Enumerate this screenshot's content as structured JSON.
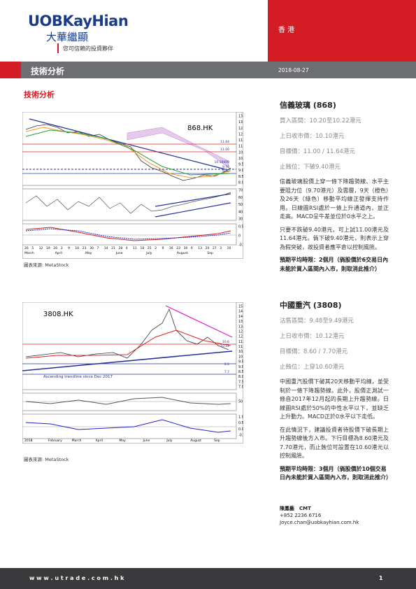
{
  "header": {
    "logo": "UOBKayHian",
    "logo_chinese": "大華繼顯",
    "tagline": "您可信賴的投資夥伴",
    "region": "香 港",
    "section": "技術分析",
    "date": "2018-08-27"
  },
  "page_heading": "技術分析",
  "stocks": [
    {
      "title": "信義玻璃 (868)",
      "entry": "買入區間：10.20至10.22港元",
      "close": "上日收市價：10.10港元",
      "target": "目標價：11.00 / 11.64港元",
      "stop": "止蝕位：下破9.40港元",
      "paragraphs": [
        "信義玻璃股價上穿一條下降趨勢線、水平主要阻力位（9.70港元）及雲層，9天（橙色）及26天（綠色）移動平均線正發揮支持作用。日線圖RSI處於一條上升通道內，並正走高。MACD呈牛差並位於0水平之上。",
        "只要不跌破9.40港元，可上試11.00港元及11.64港元。倘下破9.40港元，則表示上穿為假突破，故投資者應平倉以控制風險。"
      ],
      "horizon": "預期平均時限：2個月（倘股價於6交易日內未能於買入區間內入市，則取消此推介）",
      "chart": {
        "label": "868.HK",
        "price_ticks": [
          "13.5",
          "13.0",
          "12.5",
          "12.0",
          "11.5",
          "11.0",
          "10.5",
          "10.0",
          "9.5",
          "9.0",
          "8.5",
          "8.0"
        ],
        "level_tags": [
          "11.64",
          "11.00",
          "10.10000",
          "9.70",
          "9.40"
        ],
        "rsi_ticks": [
          "70",
          "60",
          "50",
          "40",
          "30"
        ],
        "macd_ticks": [
          "0.5",
          "0",
          "-0.5"
        ],
        "dates": [
          "26",
          "5",
          "12",
          "19",
          "26",
          "3",
          "9",
          "16",
          "23",
          "30",
          "7",
          "14",
          "21",
          "28",
          "4",
          "11",
          "18",
          "25",
          "2",
          "9",
          "16",
          "23",
          "30",
          "6",
          "13",
          "20",
          "27",
          "3",
          "10"
        ],
        "months": [
          "March",
          "April",
          "May",
          "June",
          "July",
          "August",
          "Sep"
        ]
      },
      "source": "圖表來源: MetaStock"
    },
    {
      "title": "中國重汽 (3808)",
      "entry": "沽售區間：9.48至9.49港元",
      "close": "上日收市價：10.12港元",
      "target": "目標價：8.60 / 7.70港元",
      "stop": "止蝕位：上穿10.60港元",
      "paragraphs": [
        "中國重汽股價下破其20天移動平均線，並受制於一條下降趨勢線。此外，股價正測試一條自2017年12月起的長期上升趨勢線。日線圖RSI處於50%的中性水平以下，並缺乏上升動力。MACD正於0水平以下走低。",
        "在此情況下，建議投資者待股價下破長期上升趨勢線後方入市。下行目標為8.60港元及7.70港元，而止蝕位可設置在10.60港元以控制風險。"
      ],
      "horizon": "預期平均時限：3個月（倘股價於10個交易日內未能於買入區間內入市，則取消此推介）",
      "chart": {
        "label": "3808.HK",
        "annotation": "Ascending trendline since Dec 2017",
        "price_ticks": [
          "15.0",
          "14.5",
          "14.0",
          "13.5",
          "13.0",
          "12.5",
          "12.0",
          "11.5",
          "11.0",
          "10.5",
          "10.0",
          "9.5",
          "9.0",
          "8.5",
          "8.0",
          "7.5",
          "7.0"
        ],
        "level_tags": [
          "10.6",
          "10.12",
          "8.6",
          "7.7"
        ],
        "rsi_ticks": [
          "50"
        ],
        "macd_ticks": [
          "1.0",
          "0.5",
          "0.0",
          "-0.5"
        ],
        "dates": [],
        "months": [
          "2018",
          "February",
          "March",
          "April",
          "May",
          "June",
          "July",
          "August",
          "Sep"
        ]
      },
      "source": "圖表來源: MetaStock"
    }
  ],
  "contact": {
    "name": "陳鳳藝　CMT",
    "phone": "+852 2236 6716",
    "email": "Joyce.chan@uobkayhian.com.hk"
  },
  "footer": {
    "url": "w w w . u t r a d e . c o m . h k",
    "page": "1"
  }
}
